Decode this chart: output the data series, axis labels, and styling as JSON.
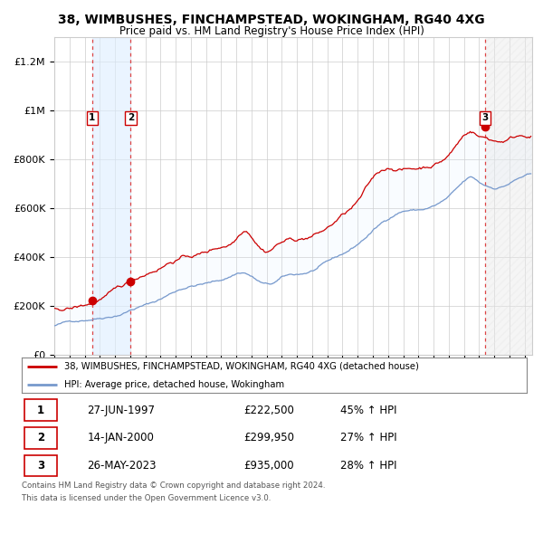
{
  "title": "38, WIMBUSHES, FINCHAMPSTEAD, WOKINGHAM, RG40 4XG",
  "subtitle": "Price paid vs. HM Land Registry's House Price Index (HPI)",
  "ylabel_ticks": [
    "£0",
    "£200K",
    "£400K",
    "£600K",
    "£800K",
    "£1M",
    "£1.2M"
  ],
  "ytick_values": [
    0,
    200000,
    400000,
    600000,
    800000,
    1000000,
    1200000
  ],
  "ylim": [
    0,
    1300000
  ],
  "xlim_start": 1995.0,
  "xlim_end": 2026.5,
  "transactions": [
    {
      "num": 1,
      "date_str": "27-JUN-1997",
      "date_x": 1997.49,
      "price": 222500,
      "pct": "45%",
      "dir": "↑"
    },
    {
      "num": 2,
      "date_str": "14-JAN-2000",
      "date_x": 2000.04,
      "price": 299950,
      "pct": "27%",
      "dir": "↑"
    },
    {
      "num": 3,
      "date_str": "26-MAY-2023",
      "date_x": 2023.4,
      "price": 935000,
      "pct": "28%",
      "dir": "↑"
    }
  ],
  "legend_line1": "38, WIMBUSHES, FINCHAMPSTEAD, WOKINGHAM, RG40 4XG (detached house)",
  "legend_line2": "HPI: Average price, detached house, Wokingham",
  "footer1": "Contains HM Land Registry data © Crown copyright and database right 2024.",
  "footer2": "This data is licensed under the Open Government Licence v3.0.",
  "table_rows": [
    [
      1,
      "27-JUN-1997",
      "£222,500",
      "45% ↑ HPI"
    ],
    [
      2,
      "14-JAN-2000",
      "£299,950",
      "27% ↑ HPI"
    ],
    [
      3,
      "26-MAY-2023",
      "£935,000",
      "28% ↑ HPI"
    ]
  ],
  "price_line_color": "#cc0000",
  "hpi_line_color": "#7799cc",
  "dashed_line_color": "#dd4444",
  "background_color": "#ffffff",
  "plot_bg_color": "#ffffff",
  "shade_color": "#ddeeff",
  "between_shade_color": "#ddeeff"
}
